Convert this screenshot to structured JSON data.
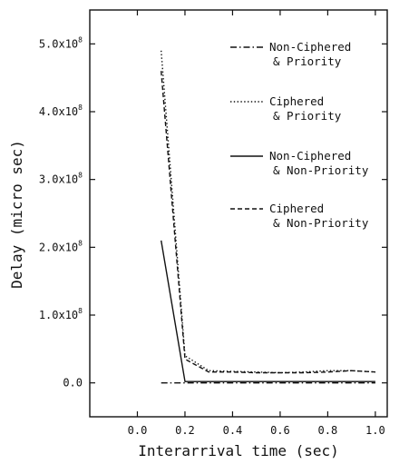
{
  "chart_data": {
    "type": "line",
    "title": "",
    "xlabel": "Interarrival time (sec)",
    "ylabel": "Delay (micro sec)",
    "xlim": [
      -0.2,
      1.05
    ],
    "ylim": [
      -50000000.0,
      550000000.0
    ],
    "x_ticks": [
      0.0,
      0.2,
      0.4,
      0.6,
      0.8,
      1.0
    ],
    "x_tick_labels": [
      "0.0",
      "0.2",
      "0.4",
      "0.6",
      "0.8",
      "1.0"
    ],
    "y_ticks": [
      0,
      100000000.0,
      200000000.0,
      300000000.0,
      400000000.0,
      500000000.0
    ],
    "y_tick_labels": [
      {
        "mantissa": "0.0",
        "exp": ""
      },
      {
        "mantissa": "1.0x10",
        "exp": "8"
      },
      {
        "mantissa": "2.0x10",
        "exp": "8"
      },
      {
        "mantissa": "3.0x10",
        "exp": "8"
      },
      {
        "mantissa": "4.0x10",
        "exp": "8"
      },
      {
        "mantissa": "5.0x10",
        "exp": "8"
      }
    ],
    "grid": false,
    "legend_position": "top-right",
    "series": [
      {
        "name_line1": "Non-Ciphered",
        "name_line2": "& Priority",
        "style": "dash-dot",
        "x": [
          0.1,
          0.2,
          0.3,
          0.4,
          0.5,
          0.6,
          0.7,
          0.8,
          0.9,
          1.0
        ],
        "y": [
          0,
          0,
          0,
          0,
          0,
          0,
          0,
          0,
          0,
          0
        ]
      },
      {
        "name_line1": "Ciphered",
        "name_line2": "& Priority",
        "style": "dotted",
        "x": [
          0.1,
          0.2,
          0.3,
          0.4,
          0.5,
          0.6,
          0.7,
          0.8,
          0.9,
          1.0
        ],
        "y": [
          490000000.0,
          40000000.0,
          18000000.0,
          17000000.0,
          16000000.0,
          15000000.0,
          16000000.0,
          18000000.0,
          18000000.0,
          16000000.0
        ]
      },
      {
        "name_line1": "Non-Ciphered",
        "name_line2": "& Non-Priority",
        "style": "solid",
        "x": [
          0.1,
          0.2,
          0.3,
          0.4,
          0.5,
          0.6,
          0.7,
          0.8,
          0.9,
          1.0
        ],
        "y": [
          210000000.0,
          2000000.0,
          2000000.0,
          2000000.0,
          2000000.0,
          2000000.0,
          2000000.0,
          2000000.0,
          2000000.0,
          2000000.0
        ]
      },
      {
        "name_line1": "Ciphered",
        "name_line2": "& Non-Priority",
        "style": "dashed",
        "x": [
          0.1,
          0.2,
          0.3,
          0.4,
          0.5,
          0.6,
          0.7,
          0.8,
          0.9,
          1.0
        ],
        "y": [
          460000000.0,
          35000000.0,
          16000000.0,
          16000000.0,
          15000000.0,
          15000000.0,
          15000000.0,
          16000000.0,
          18000000.0,
          16000000.0
        ]
      }
    ]
  }
}
